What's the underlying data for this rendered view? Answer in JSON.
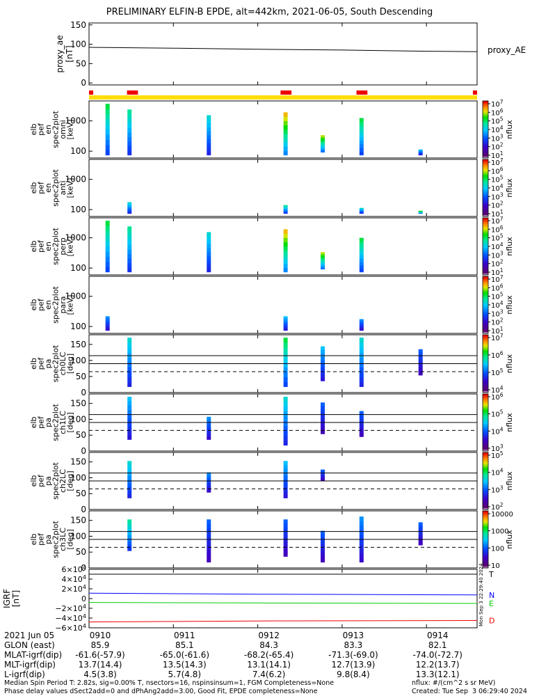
{
  "title": "PRELIMINARY ELFIN-B EPDE, alt=442km, 2021-06-05, South Descending",
  "colors": {
    "science_bar": "#ffdd00",
    "science_mark": "#ee0000",
    "bx": "#000000",
    "by": "#0000ff",
    "bz": "#00cc00",
    "bt": "#ee0000"
  },
  "chart_data": [
    {
      "type": "line",
      "ylabel": "proxy_ae [nT]",
      "right_label": "proxy_AE",
      "ylim": [
        -5,
        155
      ],
      "yticks": [
        "150",
        "100",
        "50",
        "0"
      ],
      "x": [
        0.0,
        1.0,
        2.0,
        3.0,
        4.0,
        4.6
      ],
      "values": [
        92,
        90,
        87,
        85,
        82,
        81
      ]
    },
    {
      "type": "heatmap",
      "ylabel": [
        "elb",
        "pef",
        "en",
        "spec2plot",
        "omni",
        "[keV]"
      ],
      "yticks": [
        "1000",
        "100"
      ],
      "colorbar": {
        "label": "nflux",
        "ticks": [
          "10^7",
          "10^6",
          "10^5",
          "10^4",
          "10^3",
          "10^2",
          "10^1"
        ]
      },
      "blocks": [
        {
          "x": 0.22,
          "y0": 0.05,
          "y1": 0.95,
          "v": 0.55
        },
        {
          "x": 0.48,
          "y0": 0.05,
          "y1": 0.85,
          "v": 0.5
        },
        {
          "x": 1.42,
          "y0": 0.05,
          "y1": 0.75,
          "v": 0.45
        },
        {
          "x": 2.33,
          "y0": 0.05,
          "y1": 0.8,
          "v": 0.7
        },
        {
          "x": 2.77,
          "y0": 0.1,
          "y1": 0.4,
          "v": 0.65
        },
        {
          "x": 3.23,
          "y0": 0.05,
          "y1": 0.7,
          "v": 0.55
        },
        {
          "x": 3.93,
          "y0": 0.05,
          "y1": 0.15,
          "v": 0.4
        }
      ]
    },
    {
      "type": "heatmap",
      "ylabel": [
        "elb",
        "pef",
        "en",
        "spec2plot",
        "anti",
        "[keV]"
      ],
      "yticks": [
        "1000",
        "100"
      ],
      "colorbar": {
        "label": "nflux",
        "ticks": [
          "10^7",
          "10^6",
          "10^5",
          "10^4",
          "10^3",
          "10^2",
          "10^1"
        ]
      },
      "blocks": [
        {
          "x": 0.48,
          "y0": 0.05,
          "y1": 0.25,
          "v": 0.45
        },
        {
          "x": 2.33,
          "y0": 0.05,
          "y1": 0.2,
          "v": 0.5
        },
        {
          "x": 3.23,
          "y0": 0.05,
          "y1": 0.15,
          "v": 0.45
        },
        {
          "x": 3.93,
          "y0": 0.05,
          "y1": 0.1,
          "v": 0.6
        }
      ]
    },
    {
      "type": "heatmap",
      "ylabel": [
        "elb",
        "pef",
        "en",
        "spec2plot",
        "perp",
        "[keV]"
      ],
      "yticks": [
        "1000",
        "100"
      ],
      "colorbar": {
        "label": "nflux",
        "ticks": [
          "10^7",
          "10^6",
          "10^5",
          "10^4",
          "10^3",
          "10^2",
          "10^1"
        ]
      },
      "blocks": [
        {
          "x": 0.22,
          "y0": 0.05,
          "y1": 0.95,
          "v": 0.55
        },
        {
          "x": 0.48,
          "y0": 0.05,
          "y1": 0.85,
          "v": 0.5
        },
        {
          "x": 1.42,
          "y0": 0.05,
          "y1": 0.75,
          "v": 0.45
        },
        {
          "x": 2.33,
          "y0": 0.05,
          "y1": 0.8,
          "v": 0.7
        },
        {
          "x": 2.77,
          "y0": 0.1,
          "y1": 0.4,
          "v": 0.65
        },
        {
          "x": 3.23,
          "y0": 0.05,
          "y1": 0.65,
          "v": 0.55
        }
      ]
    },
    {
      "type": "heatmap",
      "ylabel": [
        "elb",
        "pef",
        "en",
        "spec2plot",
        "para",
        "[keV]"
      ],
      "yticks": [
        "1000",
        "100"
      ],
      "colorbar": {
        "label": "nflux",
        "ticks": [
          "10^7",
          "10^6",
          "10^5",
          "10^4",
          "10^3",
          "10^2",
          "10^1"
        ]
      },
      "blocks": [
        {
          "x": 0.22,
          "y0": 0.05,
          "y1": 0.3,
          "v": 0.35
        },
        {
          "x": 2.33,
          "y0": 0.05,
          "y1": 0.3,
          "v": 0.4
        },
        {
          "x": 3.23,
          "y0": 0.05,
          "y1": 0.25,
          "v": 0.35
        }
      ]
    },
    {
      "type": "heatmap",
      "ylabel": [
        "elb",
        "pef",
        "pa",
        "spec2plot",
        "ch0LC",
        "[deg]"
      ],
      "yticks": [
        "150",
        "100",
        "50",
        "0"
      ],
      "ylim": [
        0,
        180
      ],
      "lines": [
        115,
        90,
        65
      ],
      "colorbar": {
        "label": "nflux",
        "ticks": [
          "10^7",
          "10^6",
          "10^5",
          "10^4"
        ]
      },
      "blocks": [
        {
          "x": 0.48,
          "y0": 0.1,
          "y1": 0.95,
          "v": 0.45
        },
        {
          "x": 2.33,
          "y0": 0.1,
          "y1": 0.95,
          "v": 0.55
        },
        {
          "x": 2.77,
          "y0": 0.2,
          "y1": 0.8,
          "v": 0.4
        },
        {
          "x": 3.23,
          "y0": 0.1,
          "y1": 0.95,
          "v": 0.45
        },
        {
          "x": 3.93,
          "y0": 0.3,
          "y1": 0.75,
          "v": 0.3
        }
      ]
    },
    {
      "type": "heatmap",
      "ylabel": [
        "elb",
        "pef",
        "pa",
        "spec2plot",
        "ch1LC",
        "[deg]"
      ],
      "yticks": [
        "150",
        "100",
        "50",
        "0"
      ],
      "ylim": [
        0,
        180
      ],
      "lines": [
        115,
        90,
        65
      ],
      "colorbar": {
        "label": "nflux",
        "ticks": [
          "10^6",
          "10^5",
          "10^4",
          "10^3"
        ]
      },
      "blocks": [
        {
          "x": 0.48,
          "y0": 0.2,
          "y1": 0.95,
          "v": 0.4
        },
        {
          "x": 1.42,
          "y0": 0.2,
          "y1": 0.6,
          "v": 0.35
        },
        {
          "x": 2.33,
          "y0": 0.1,
          "y1": 0.95,
          "v": 0.45
        },
        {
          "x": 2.77,
          "y0": 0.3,
          "y1": 0.85,
          "v": 0.3
        },
        {
          "x": 3.23,
          "y0": 0.25,
          "y1": 0.7,
          "v": 0.3
        }
      ]
    },
    {
      "type": "heatmap",
      "ylabel": [
        "elb",
        "pef",
        "pa",
        "spec2plot",
        "ch2LC",
        "[deg]"
      ],
      "yticks": [
        "150",
        "100",
        "50",
        "0"
      ],
      "ylim": [
        0,
        180
      ],
      "lines": [
        115,
        90,
        65
      ],
      "colorbar": {
        "label": "nflux",
        "ticks": [
          "10^5",
          "10^4",
          "10^3",
          "10^2"
        ]
      },
      "blocks": [
        {
          "x": 0.48,
          "y0": 0.2,
          "y1": 0.85,
          "v": 0.45
        },
        {
          "x": 1.42,
          "y0": 0.3,
          "y1": 0.65,
          "v": 0.35
        },
        {
          "x": 2.33,
          "y0": 0.2,
          "y1": 0.85,
          "v": 0.4
        },
        {
          "x": 2.77,
          "y0": 0.5,
          "y1": 0.7,
          "v": 0.3
        }
      ]
    },
    {
      "type": "heatmap",
      "ylabel": [
        "elb",
        "pef",
        "pa",
        "spec2plot",
        "ch3LC",
        "[deg]"
      ],
      "yticks": [
        "150",
        "100",
        "50",
        "0"
      ],
      "ylim": [
        0,
        180
      ],
      "lines": [
        115,
        90,
        65
      ],
      "colorbar": {
        "label": "nflux",
        "ticks": [
          "10000",
          "1000",
          "100",
          "10"
        ]
      },
      "blocks": [
        {
          "x": 0.48,
          "y0": 0.3,
          "y1": 0.85,
          "v": 0.5
        },
        {
          "x": 1.42,
          "y0": 0.1,
          "y1": 0.85,
          "v": 0.3
        },
        {
          "x": 2.33,
          "y0": 0.2,
          "y1": 0.85,
          "v": 0.3
        },
        {
          "x": 2.77,
          "y0": 0.1,
          "y1": 0.65,
          "v": 0.3
        },
        {
          "x": 3.23,
          "y0": 0.1,
          "y1": 0.9,
          "v": 0.35
        },
        {
          "x": 3.93,
          "y0": 0.4,
          "y1": 0.8,
          "v": 0.3
        }
      ]
    },
    {
      "type": "line",
      "ylabel": "IGRF [nT]",
      "yticks": [
        "6×10^4",
        "4×10^4",
        "2×10^4",
        "0",
        "−2×10^4",
        "−4×10^4",
        "−6×10^4"
      ],
      "ylim": [
        -60000,
        60000
      ],
      "x": [
        0.0,
        2.0,
        4.6
      ],
      "series": [
        {
          "name": "T",
          "values": [
            50000,
            50000,
            50000
          ]
        },
        {
          "name": "N",
          "values": [
            11000,
            9000,
            7500
          ]
        },
        {
          "name": "E",
          "values": [
            -8000,
            -9000,
            -10000
          ]
        },
        {
          "name": "D",
          "values": [
            -48000,
            -46000,
            -45000
          ]
        }
      ],
      "side_stamp": "Mon Sep  3 22:29:40 2024"
    }
  ],
  "x_axis": {
    "tick_labels": [
      "0910",
      "0911",
      "0912",
      "0913",
      "0914"
    ],
    "rows": [
      {
        "label": "2021 Jun 05",
        "values": [
          "0910",
          "0911",
          "0912",
          "0913",
          "0914"
        ]
      },
      {
        "label": "GLON (east)",
        "values": [
          "85.9",
          "85.1",
          "84.3",
          "83.3",
          "82.1"
        ]
      },
      {
        "label": "MLAT-igrf(dip)",
        "values": [
          "-61.6(-57.9)",
          "-65.0(-61.6)",
          "-68.2(-65.4)",
          "-71.3(-69.0)",
          "-74.0(-72.7)"
        ]
      },
      {
        "label": "MLT-igrf(dip)",
        "values": [
          "13.7(14.4)",
          "13.5(14.3)",
          "13.1(14.1)",
          "12.7(13.9)",
          "12.2(13.7)"
        ]
      },
      {
        "label": "L-igrf(dip)",
        "values": [
          "4.5(3.8)",
          "5.7(4.8)",
          "7.4(6.2)",
          "9.8(8.4)",
          "13.3(12.1)"
        ]
      }
    ]
  },
  "science_zones": [
    [
      0.0,
      0.05
    ],
    [
      0.45,
      0.58
    ],
    [
      2.27,
      2.4
    ],
    [
      3.17,
      3.3
    ],
    [
      4.55,
      4.6
    ]
  ],
  "footer": {
    "line1": "Median Spin Period T: 2.82s, sig=0.00% T, nsectors=16, nspinsinsum=1, FGM Completeness=None",
    "line2": "Phase delay values dSect2add=0 and dPhAng2add=3.00, Good Fit, EPDE completeness=None",
    "units": "nflux: #/(cm^2 s sr MeV)",
    "created": "Created: Tue Sep  3 06:29:40 2024"
  }
}
